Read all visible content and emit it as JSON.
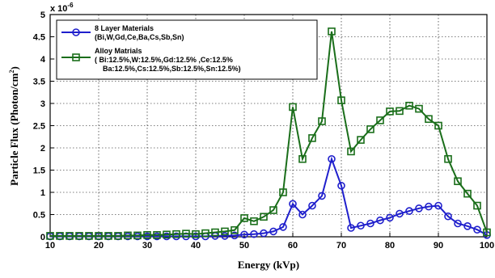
{
  "chart_data": {
    "type": "line",
    "xlabel": "Energy (kVp)",
    "ylabel_main": "Particle Flux (Photon/cm",
    "ylabel_sup": "2",
    "ylabel_end": ")",
    "y_multiplier": "x 10",
    "y_multiplier_exp": "-6",
    "xlim": [
      10,
      100
    ],
    "ylim": [
      0,
      5
    ],
    "xticks": [
      10,
      20,
      30,
      40,
      50,
      60,
      70,
      80,
      90,
      100
    ],
    "yticks": [
      0,
      0.5,
      1,
      1.5,
      2,
      2.5,
      3,
      3.5,
      4,
      4.5,
      5
    ],
    "ytick_labels": [
      "0",
      "0.5",
      "1",
      "1.5",
      "2",
      "2.5",
      "3",
      "3.5",
      "4",
      "4.5",
      "5"
    ],
    "grid": true,
    "legend_position": "top-left",
    "series": [
      {
        "name": "8 Layer Materials",
        "legend_lines": [
          "8 Layer Materials",
          "(Bi,W,Gd,Ce,Ba,Cs,Sb,Sn)"
        ],
        "color": "#1f1fcc",
        "marker": "circle",
        "x": [
          10,
          12,
          14,
          16,
          18,
          20,
          22,
          24,
          26,
          28,
          30,
          32,
          34,
          36,
          38,
          40,
          42,
          44,
          46,
          48,
          50,
          52,
          54,
          56,
          58,
          60,
          62,
          64,
          66,
          68,
          70,
          72,
          74,
          76,
          78,
          80,
          82,
          84,
          86,
          88,
          90,
          92,
          94,
          96,
          98,
          100
        ],
        "y": [
          0.01,
          0.01,
          0.01,
          0.01,
          0.01,
          0.01,
          0.01,
          0.01,
          0.01,
          0.01,
          0.01,
          0.01,
          0.01,
          0.01,
          0.01,
          0.01,
          0.01,
          0.02,
          0.02,
          0.03,
          0.05,
          0.06,
          0.08,
          0.12,
          0.22,
          0.74,
          0.5,
          0.7,
          0.92,
          1.75,
          1.15,
          0.2,
          0.25,
          0.3,
          0.37,
          0.43,
          0.52,
          0.58,
          0.64,
          0.68,
          0.7,
          0.46,
          0.3,
          0.24,
          0.16,
          0.04
        ]
      },
      {
        "name": "Alloy Matrials",
        "legend_lines": [
          "Alloy Matrials",
          "( Bi:12.5%,W:12.5%,Gd:12.5% ,Ce:12.5%",
          "Ba:12.5%,Cs:12.5%,Sb:12.5%,Sn:12.5%)"
        ],
        "color": "#1a6e1a",
        "marker": "square",
        "x": [
          10,
          12,
          14,
          16,
          18,
          20,
          22,
          24,
          26,
          28,
          30,
          32,
          34,
          36,
          38,
          40,
          42,
          44,
          46,
          48,
          50,
          52,
          54,
          56,
          58,
          60,
          62,
          64,
          66,
          68,
          70,
          72,
          74,
          76,
          78,
          80,
          82,
          84,
          86,
          88,
          90,
          92,
          94,
          96,
          98,
          100
        ],
        "y": [
          0.02,
          0.02,
          0.02,
          0.02,
          0.02,
          0.02,
          0.02,
          0.02,
          0.03,
          0.03,
          0.04,
          0.04,
          0.05,
          0.06,
          0.07,
          0.06,
          0.08,
          0.1,
          0.12,
          0.15,
          0.42,
          0.35,
          0.45,
          0.6,
          1.0,
          2.92,
          1.75,
          2.22,
          2.6,
          4.62,
          3.07,
          1.92,
          2.18,
          2.42,
          2.62,
          2.82,
          2.83,
          2.95,
          2.88,
          2.65,
          2.5,
          1.75,
          1.25,
          0.97,
          0.7,
          0.1
        ]
      }
    ]
  }
}
